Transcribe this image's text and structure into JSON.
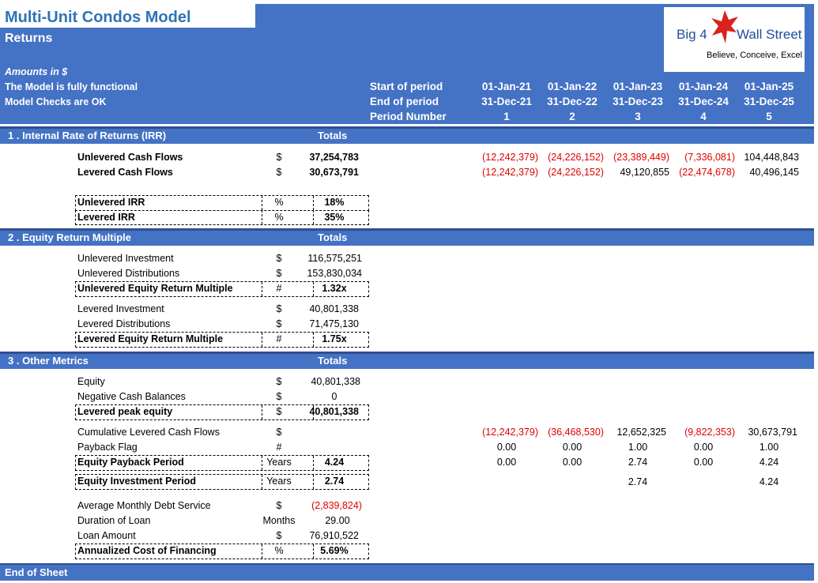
{
  "header": {
    "title": "Multi-Unit Condos Model",
    "subtitle": "Returns",
    "amounts_note": "Amounts in $",
    "functional_note": "The Model is fully functional",
    "checks_note": "Model Checks are OK",
    "row_labels": [
      "Start of period",
      "End of period",
      "Period Number"
    ],
    "periods": [
      {
        "start": "01-Jan-21",
        "end": "31-Dec-21",
        "num": "1"
      },
      {
        "start": "01-Jan-22",
        "end": "31-Dec-22",
        "num": "2"
      },
      {
        "start": "01-Jan-23",
        "end": "31-Dec-23",
        "num": "3"
      },
      {
        "start": "01-Jan-24",
        "end": "31-Dec-24",
        "num": "4"
      },
      {
        "start": "01-Jan-25",
        "end": "31-Dec-25",
        "num": "5"
      }
    ]
  },
  "logo": {
    "brand_left": "Big 4",
    "brand_right": "Wall Street",
    "tagline": "Believe, Conceive, Excel"
  },
  "sections": [
    {
      "title": "1 . Internal Rate of Returns (IRR)",
      "totals": "Totals"
    },
    {
      "title": "2 . Equity Return Multiple",
      "totals": "Totals"
    },
    {
      "title": "3 . Other Metrics",
      "totals": "Totals"
    }
  ],
  "irr": {
    "unlev_cf": {
      "label": "Unlevered Cash Flows",
      "unit": "$",
      "total": "37,254,783",
      "values": [
        "(12,242,379)",
        "(24,226,152)",
        "(23,389,449)",
        "(7,336,081)",
        "104,448,843"
      ]
    },
    "lev_cf": {
      "label": "Levered Cash Flows",
      "unit": "$",
      "total": "30,673,791",
      "values": [
        "(12,242,379)",
        "(24,226,152)",
        "49,120,855",
        "(22,474,678)",
        "40,496,145"
      ]
    },
    "unlev_irr": {
      "label": "Unlevered IRR",
      "unit": "%",
      "total": "18%"
    },
    "lev_irr": {
      "label": "Levered IRR",
      "unit": "%",
      "total": "35%"
    }
  },
  "multiple": {
    "unlev_inv": {
      "label": "Unlevered Investment",
      "unit": "$",
      "total": "116,575,251"
    },
    "unlev_dist": {
      "label": "Unlevered Distributions",
      "unit": "$",
      "total": "153,830,034"
    },
    "unlev_mult": {
      "label": "Unlevered Equity Return Multiple",
      "unit": "#",
      "total": "1.32x"
    },
    "lev_inv": {
      "label": "Levered Investment",
      "unit": "$",
      "total": "40,801,338"
    },
    "lev_dist": {
      "label": "Levered Distributions",
      "unit": "$",
      "total": "71,475,130"
    },
    "lev_mult": {
      "label": "Levered Equity Return Multiple",
      "unit": "#",
      "total": "1.75x"
    }
  },
  "other": {
    "equity": {
      "label": "Equity",
      "unit": "$",
      "total": "40,801,338"
    },
    "neg_cash": {
      "label": "Negative Cash Balances",
      "unit": "$",
      "total": "0"
    },
    "peak_equity": {
      "label": "Levered peak equity",
      "unit": "$",
      "total": "40,801,338"
    },
    "cum_cf": {
      "label": "Cumulative Levered Cash Flows",
      "unit": "$",
      "values": [
        "(12,242,379)",
        "(36,468,530)",
        "12,652,325",
        "(9,822,353)",
        "30,673,791"
      ]
    },
    "payback_flag": {
      "label": "Payback Flag",
      "unit": "#",
      "values": [
        "0.00",
        "0.00",
        "1.00",
        "0.00",
        "1.00"
      ]
    },
    "payback_period": {
      "label": "Equity Payback Period",
      "unit": "Years",
      "total": "4.24",
      "values": [
        "0.00",
        "0.00",
        "2.74",
        "0.00",
        "4.24"
      ]
    },
    "inv_period": {
      "label": "Equity Investment Period",
      "unit": "Years",
      "total": "2.74",
      "values": [
        "",
        "",
        "2.74",
        "",
        "4.24"
      ]
    },
    "debt_service": {
      "label": "Average Monthly Debt Service",
      "unit": "$",
      "total": "(2,839,824)"
    },
    "duration": {
      "label": "Duration of Loan",
      "unit": "Months",
      "total": "29.00"
    },
    "loan_amount": {
      "label": "Loan Amount",
      "unit": "$",
      "total": "76,910,522"
    },
    "cost_fin": {
      "label": "Annualized Cost of Financing",
      "unit": "%",
      "total": "5.69%"
    }
  },
  "footer": {
    "label": "End of Sheet"
  },
  "colors": {
    "header_blue": "#4472C4",
    "title_blue": "#2E74B5",
    "negative_red": "#E00000"
  }
}
